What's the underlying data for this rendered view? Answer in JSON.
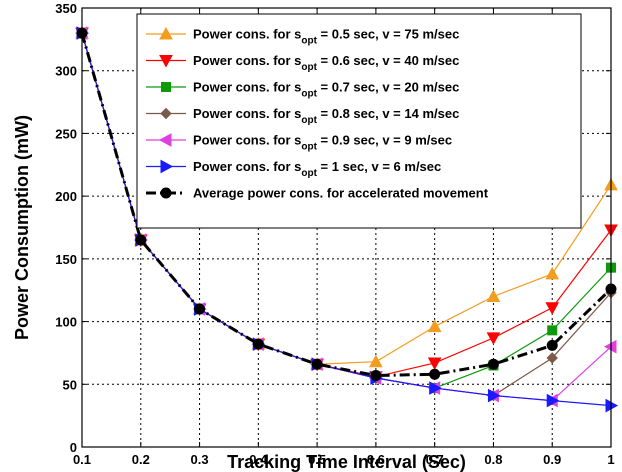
{
  "chart_data": {
    "type": "line",
    "xlabel": "Tracking Time Interval (Sec)",
    "ylabel": "Power Consumption (mW)",
    "xlim": [
      0.1,
      1.0
    ],
    "ylim": [
      0,
      350
    ],
    "x_ticks": [
      "0.1",
      "0.2",
      "0.3",
      "0.4",
      "0.5",
      "0.6",
      "0.7",
      "0.8",
      "0.9",
      "1"
    ],
    "y_ticks": [
      "0",
      "50",
      "100",
      "150",
      "200",
      "250",
      "300",
      "350"
    ],
    "grid": true,
    "legend_position": "top-right",
    "series": [
      {
        "label_main": "Power cons. for s",
        "label_sub": "opt",
        "label_rest": " = 0.5 sec, v = 75 m/sec",
        "color": "#f39c1f",
        "marker": "triangle-up",
        "line_style": "solid",
        "x": [
          0.1,
          0.2,
          0.3,
          0.4,
          0.5,
          0.6,
          0.7,
          0.8,
          0.9,
          1.0
        ],
        "y": [
          330,
          165,
          110,
          82,
          66,
          68,
          96,
          120,
          138,
          209
        ]
      },
      {
        "label_main": "Power cons. for s",
        "label_sub": "opt",
        "label_rest": " = 0.6 sec, v = 40 m/sec",
        "color": "#ff0000",
        "marker": "triangle-down",
        "line_style": "solid",
        "x": [
          0.1,
          0.2,
          0.3,
          0.4,
          0.5,
          0.6,
          0.7,
          0.8,
          0.9,
          1.0
        ],
        "y": [
          330,
          165,
          110,
          82,
          66,
          56,
          67,
          87,
          111,
          173
        ]
      },
      {
        "label_main": "Power cons. for s",
        "label_sub": "opt",
        "label_rest": " = 0.7 sec, v = 20 m/sec",
        "color": "#0a9a0a",
        "marker": "square",
        "line_style": "solid",
        "x": [
          0.1,
          0.2,
          0.3,
          0.4,
          0.5,
          0.6,
          0.7,
          0.8,
          0.9,
          1.0
        ],
        "y": [
          330,
          165,
          110,
          82,
          66,
          55,
          47,
          65,
          93,
          143
        ]
      },
      {
        "label_main": "Power cons. for s",
        "label_sub": "opt",
        "label_rest": " = 0.8 sec, v = 14 m/sec",
        "color": "#7a5a4a",
        "marker": "diamond",
        "line_style": "solid",
        "x": [
          0.1,
          0.2,
          0.3,
          0.4,
          0.5,
          0.6,
          0.7,
          0.8,
          0.9,
          1.0
        ],
        "y": [
          330,
          165,
          110,
          82,
          66,
          55,
          47,
          41,
          71,
          123
        ]
      },
      {
        "label_main": "Power cons. for s",
        "label_sub": "opt",
        "label_rest": " = 0.9 sec, v = 9 m/sec",
        "color": "#e040e0",
        "marker": "triangle-left",
        "line_style": "solid",
        "x": [
          0.1,
          0.2,
          0.3,
          0.4,
          0.5,
          0.6,
          0.7,
          0.8,
          0.9,
          1.0
        ],
        "y": [
          330,
          165,
          110,
          82,
          66,
          55,
          47,
          41,
          37,
          80
        ]
      },
      {
        "label_main": "Power cons. for s",
        "label_sub": "opt",
        "label_rest": " =  1 sec,  v = 6 m/sec",
        "color": "#1a1aff",
        "marker": "triangle-right",
        "line_style": "solid",
        "x": [
          0.1,
          0.2,
          0.3,
          0.4,
          0.5,
          0.6,
          0.7,
          0.8,
          0.9,
          1.0
        ],
        "y": [
          330,
          165,
          110,
          82,
          66,
          55,
          47,
          41,
          37,
          33
        ]
      },
      {
        "label_main": "Average power cons. for accelerated movement",
        "label_sub": "",
        "label_rest": "",
        "color": "#000000",
        "marker": "circle",
        "line_style": "dashdot",
        "x": [
          0.1,
          0.2,
          0.3,
          0.4,
          0.5,
          0.6,
          0.7,
          0.8,
          0.9,
          1.0
        ],
        "y": [
          330,
          165,
          110,
          82,
          66,
          57,
          58,
          66,
          81,
          126
        ]
      }
    ]
  }
}
